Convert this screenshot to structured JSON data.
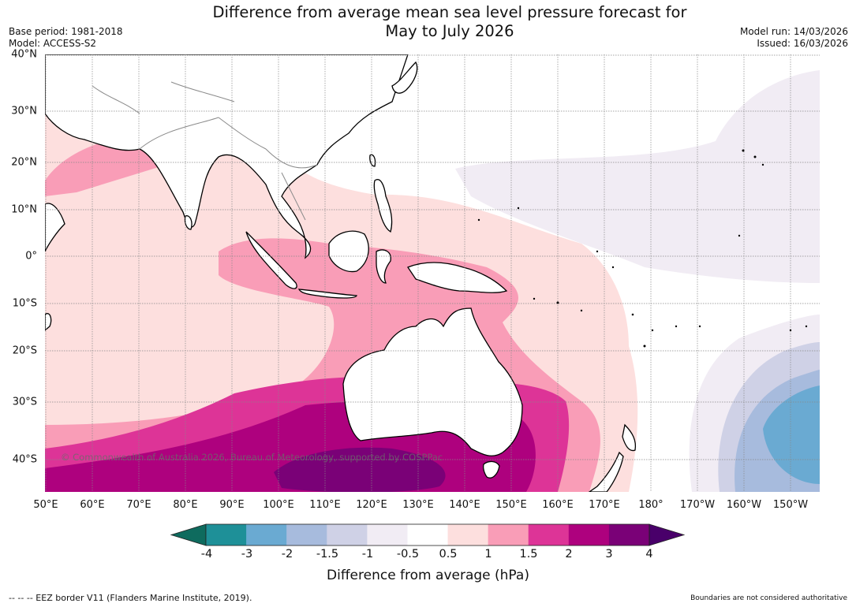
{
  "title": "Difference from average mean sea level pressure forecast for May to July 2026",
  "title_line1": "Difference from average mean sea level pressure forecast for",
  "title_line2": "May to July 2026",
  "base_period": "Base period: 1981-2018",
  "model": "Model: ACCESS-S2",
  "model_run": "Model run: 14/03/2026",
  "issued": "Issued: 16/03/2026",
  "latitude_labels": [
    "40°N",
    "30°N",
    "20°N",
    "10°N",
    "0°",
    "10°S",
    "20°S",
    "30°S",
    "40°S"
  ],
  "longitude_labels": [
    "50°E",
    "60°E",
    "70°E",
    "80°E",
    "90°E",
    "100°E",
    "110°E",
    "120°E",
    "130°E",
    "140°E",
    "150°E",
    "160°E",
    "170°E",
    "180°",
    "170°W",
    "160°W",
    "150°W"
  ],
  "colorbar": {
    "title": "Difference from average (hPa)",
    "ticks": [
      "-4",
      "-3",
      "-2",
      "-1.5",
      "-1",
      "-0.5",
      "0.5",
      "1",
      "1.5",
      "2",
      "3",
      "4"
    ],
    "colors": {
      "under": "#0e6b5e",
      "bins": [
        "#1e9098",
        "#6aaad2",
        "#a7bbdd",
        "#cfd1e6",
        "#f1ecf4",
        "#ffffff",
        "#fddfde",
        "#f99db7",
        "#dd3497",
        "#ae017e",
        "#7a0177"
      ],
      "over": "#49006a"
    }
  },
  "copyright": "© Commonwealth of Australia 2026, Bureau of Meteorology, supported by COSPPac",
  "footer_left": "--  --  -- EEZ border V11 (Flanders Marine Institute, 2019).",
  "footer_right": "Boundaries are not considered authoritative",
  "map_colors": {
    "land": "#ffffff",
    "grid": "#888888",
    "coast": "#000000",
    "border": "#8a8a8a"
  }
}
